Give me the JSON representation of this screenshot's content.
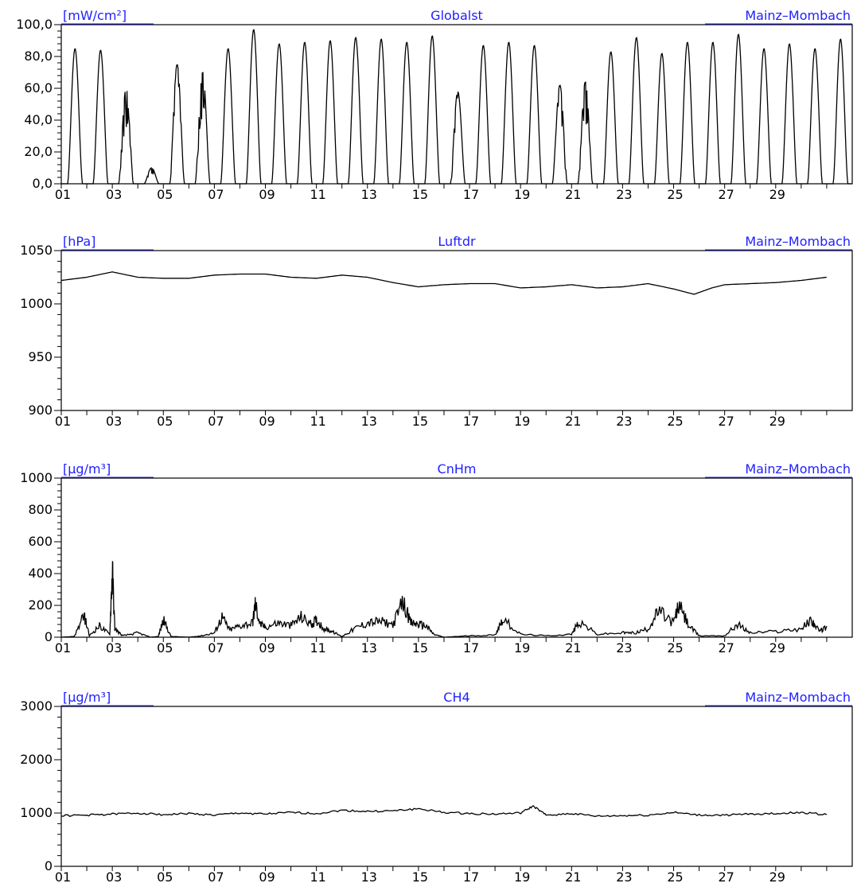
{
  "colors": {
    "header_text": "#1f1fff",
    "axis": "#000000",
    "line": "#000000",
    "background": "#ffffff"
  },
  "chart_data": [
    {
      "type": "line",
      "title": "Globalst",
      "unit": "[mW/cm²]",
      "station": "Mainz–Mombach",
      "ylim": [
        0,
        100
      ],
      "yticks": [
        "0,0",
        "20,0",
        "40,0",
        "60,0",
        "80,0",
        "100,0"
      ],
      "xlim": [
        1,
        31
      ],
      "xticks": [
        "01",
        "03",
        "05",
        "07",
        "09",
        "11",
        "13",
        "15",
        "17",
        "19",
        "21",
        "23",
        "25",
        "27",
        "29"
      ],
      "daily_peaks": [
        85,
        84,
        60,
        10,
        75,
        70,
        85,
        97,
        88,
        89,
        90,
        92,
        91,
        89,
        93,
        58,
        87,
        89,
        87,
        62,
        64,
        83,
        92,
        82,
        89,
        89,
        94,
        85,
        88,
        85,
        91
      ],
      "grid": false,
      "legend": "none"
    },
    {
      "type": "line",
      "title": "Luftdr",
      "unit": "[hPa]",
      "station": "Mainz–Mombach",
      "ylim": [
        900,
        1050
      ],
      "yticks": [
        "900",
        "950",
        "1000",
        "1050"
      ],
      "xlim": [
        1,
        31
      ],
      "xticks": [
        "01",
        "03",
        "05",
        "07",
        "09",
        "11",
        "13",
        "15",
        "17",
        "19",
        "21",
        "23",
        "25",
        "27",
        "29"
      ],
      "x": [
        1,
        2,
        3,
        4,
        5,
        6,
        7,
        8,
        9,
        10,
        11,
        12,
        13,
        14,
        15,
        16,
        17,
        18,
        19,
        20,
        21,
        22,
        23,
        24,
        25,
        25.8,
        26.5,
        27,
        28,
        29,
        30,
        31
      ],
      "values": [
        1022,
        1025,
        1030,
        1025,
        1024,
        1024,
        1027,
        1028,
        1028,
        1025,
        1024,
        1027,
        1025,
        1020,
        1016,
        1018,
        1019,
        1019,
        1015,
        1016,
        1018,
        1015,
        1016,
        1019,
        1014,
        1009,
        1015,
        1018,
        1019,
        1020,
        1022,
        1025
      ],
      "grid": false,
      "legend": "none"
    },
    {
      "type": "line",
      "title": "CnHm",
      "unit": "[µg/m³]",
      "station": "Mainz–Mombach",
      "ylim": [
        0,
        1000
      ],
      "yticks": [
        "0",
        "200",
        "400",
        "600",
        "800",
        "1000"
      ],
      "xlim": [
        1,
        31
      ],
      "xticks": [
        "01",
        "03",
        "05",
        "07",
        "09",
        "11",
        "13",
        "15",
        "17",
        "19",
        "21",
        "23",
        "25",
        "27",
        "29"
      ],
      "x": [
        1,
        1.5,
        1.9,
        2.1,
        2.5,
        2.9,
        3.0,
        3.1,
        3.4,
        4.0,
        4.5,
        4.8,
        5.0,
        5.3,
        6.0,
        6.5,
        7.0,
        7.3,
        7.6,
        8.0,
        8.5,
        8.6,
        8.8,
        9.0,
        9.5,
        10.0,
        10.4,
        10.8,
        11.0,
        11.3,
        11.6,
        12.0,
        12.5,
        13.0,
        13.5,
        14.0,
        14.4,
        14.7,
        15.0,
        15.3,
        15.6,
        16.0,
        17.0,
        18.0,
        18.3,
        19.0,
        20.0,
        21.0,
        21.3,
        22.0,
        23.0,
        23.5,
        24.0,
        24.4,
        25.0,
        25.2,
        25.6,
        26.0,
        27.0,
        27.5,
        28.0,
        29.0,
        30.0,
        30.4,
        30.7,
        31.0
      ],
      "values": [
        0,
        5,
        150,
        10,
        80,
        20,
        470,
        60,
        10,
        30,
        0,
        5,
        120,
        5,
        0,
        10,
        30,
        140,
        50,
        80,
        100,
        230,
        90,
        70,
        100,
        80,
        140,
        90,
        120,
        60,
        40,
        5,
        60,
        100,
        110,
        90,
        240,
        100,
        90,
        80,
        20,
        0,
        10,
        15,
        130,
        20,
        10,
        20,
        110,
        20,
        30,
        30,
        60,
        180,
        100,
        220,
        80,
        10,
        10,
        90,
        30,
        40,
        60,
        120,
        40,
        70
      ],
      "grid": false,
      "legend": "none"
    },
    {
      "type": "line",
      "title": "CH4",
      "unit": "[µg/m³]",
      "station": "Mainz–Mombach",
      "ylim": [
        0,
        3000
      ],
      "yticks": [
        "0",
        "1000",
        "2000",
        "3000"
      ],
      "xlim": [
        1,
        31
      ],
      "xticks": [
        "01",
        "03",
        "05",
        "07",
        "09",
        "11",
        "13",
        "15",
        "17",
        "19",
        "21",
        "23",
        "25",
        "27",
        "29"
      ],
      "x": [
        1,
        2,
        3,
        4,
        5,
        6,
        7,
        8,
        9,
        10,
        11,
        12,
        13,
        14,
        15,
        16,
        17,
        18,
        19,
        19.5,
        20,
        21,
        22,
        23,
        24,
        25,
        26,
        27,
        28,
        29,
        30,
        31
      ],
      "values": [
        950,
        960,
        980,
        1000,
        970,
        990,
        960,
        1000,
        980,
        1010,
        990,
        1050,
        1030,
        1040,
        1080,
        1010,
        990,
        980,
        1000,
        1130,
        960,
        990,
        940,
        950,
        960,
        1010,
        960,
        960,
        980,
        990,
        1010,
        970
      ],
      "grid": false,
      "legend": "none"
    }
  ]
}
